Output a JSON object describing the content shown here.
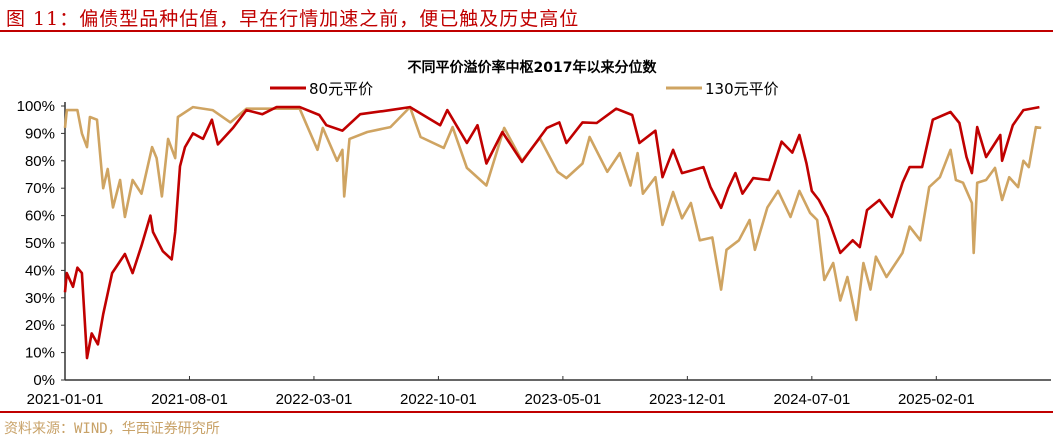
{
  "figure_title": "图 11：偏债型品种估值，早在行情加速之前，便已触及历史高位",
  "source": "资料来源：WIND，华西证券研究所",
  "colors": {
    "accent": "#c00000",
    "series_80": "#c00000",
    "series_130": "#cfa462",
    "source_text": "#c8a268"
  },
  "chart_data": {
    "type": "line",
    "title": "不同平价溢价率中枢2017年以来分位数",
    "x_unit": "months since 2021-01-01",
    "xlim": [
      0,
      55
    ],
    "ylim": [
      0,
      100
    ],
    "x_ticks": [
      0,
      7,
      14,
      21,
      28,
      35,
      42,
      49
    ],
    "x_tick_labels": [
      "2021-01-01",
      "2021-08-01",
      "2022-03-01",
      "2022-10-01",
      "2023-05-01",
      "2023-12-01",
      "2024-07-01",
      "2025-02-01"
    ],
    "y_ticks": [
      0,
      10,
      20,
      30,
      40,
      50,
      60,
      70,
      80,
      90,
      100
    ],
    "y_tick_labels": [
      "0%",
      "10%",
      "20%",
      "30%",
      "40%",
      "50%",
      "60%",
      "70%",
      "80%",
      "90%",
      "100%"
    ],
    "legend_position": "top",
    "series": [
      {
        "name": "80元平价",
        "color": "#c00000",
        "x": [
          0,
          0.1,
          0.45,
          0.7,
          0.95,
          1.24,
          1.5,
          1.85,
          2.15,
          2.65,
          3.37,
          3.8,
          4.3,
          4.8,
          4.95,
          5.5,
          6.0,
          6.2,
          6.47,
          6.75,
          7.2,
          7.76,
          8.26,
          8.6,
          9.45,
          10.2,
          11.1,
          11.9,
          13.2,
          14.3,
          14.7,
          15.6,
          16.6,
          18.3,
          19.4,
          21.1,
          21.5,
          22.6,
          23.2,
          23.7,
          24.6,
          25.7,
          26.3,
          27.1,
          27.8,
          28.2,
          29.1,
          29.9,
          31,
          31.9,
          32.3,
          33.2,
          33.6,
          34.2,
          34.7,
          35.9,
          36.3,
          36.9,
          37.3,
          37.7,
          38.1,
          38.7,
          39.6,
          40.3,
          40.9,
          41.3,
          41.7,
          42,
          42.4,
          42.9,
          43.6,
          44.3,
          44.7,
          45.1,
          45.8,
          46.5,
          47.1,
          47.5,
          48.2,
          48.8,
          49.8,
          50.3,
          50.7,
          51,
          51.3,
          51.8,
          52.6,
          52.7,
          53.3,
          53.9,
          54.8
        ],
        "values": [
          32,
          39,
          34,
          41,
          39,
          8,
          17,
          13,
          24,
          39,
          46,
          39,
          49,
          60,
          54,
          47,
          44,
          54,
          78,
          85,
          90,
          88,
          95,
          86,
          92,
          98.5,
          97,
          99.6,
          99.6,
          96.7,
          93,
          91,
          97,
          98.5,
          99.6,
          93,
          98.5,
          86.5,
          93,
          79,
          90.5,
          79.6,
          85,
          92,
          94,
          86.5,
          94,
          93.8,
          99,
          96.7,
          86.5,
          91,
          74,
          84,
          75.5,
          77.7,
          70.4,
          62.8,
          70,
          75.5,
          68,
          73.7,
          73,
          87,
          83,
          89.4,
          79,
          69,
          65.7,
          59.5,
          46.4,
          51,
          48.5,
          62,
          65.7,
          59.5,
          72,
          77.7,
          77.7,
          95,
          97.8,
          93.8,
          81.4,
          75.5,
          92.3,
          81.4,
          89.4,
          80,
          93,
          98.5,
          99.6
        ]
      },
      {
        "name": "130元平价",
        "color": "#cfa462",
        "x": [
          0,
          0.1,
          0.7,
          0.95,
          1.24,
          1.4,
          1.8,
          2.15,
          2.4,
          2.7,
          3.1,
          3.37,
          3.8,
          4.3,
          4.9,
          5.15,
          5.45,
          5.8,
          6.2,
          6.35,
          7.2,
          8.3,
          9.3,
          10.2,
          13.2,
          13.6,
          14.2,
          14.5,
          15.3,
          15.6,
          15.7,
          16,
          17,
          18.3,
          19.4,
          20,
          21.3,
          21.8,
          22.6,
          23.7,
          24.7,
          25.7,
          26.7,
          27.7,
          28.2,
          29.1,
          29.5,
          30.5,
          31.2,
          31.8,
          32.2,
          32.5,
          33.2,
          33.6,
          34.2,
          34.7,
          35.2,
          35.7,
          36.4,
          36.9,
          37.2,
          37.9,
          38.5,
          38.8,
          39.5,
          40.1,
          40.8,
          41.3,
          41.9,
          42.3,
          42.7,
          43.2,
          43.6,
          44,
          44.5,
          44.9,
          45.3,
          45.6,
          46.2,
          47.1,
          47.5,
          48.1,
          48.6,
          49.2,
          49.8,
          50.1,
          50.5,
          51,
          51.1,
          51.3,
          51.8,
          52.3,
          52.7,
          53.1,
          53.6,
          53.9,
          54.2,
          54.6,
          54.9
        ],
        "values": [
          92,
          98.5,
          98.5,
          90,
          85,
          96,
          95,
          70,
          77,
          63,
          73,
          59.5,
          73,
          68,
          85,
          81,
          67,
          88,
          81,
          96,
          99.6,
          98.5,
          94,
          99,
          99,
          93,
          84,
          92,
          80,
          84,
          67,
          88,
          90.5,
          92.3,
          99.6,
          88.7,
          84.7,
          92.3,
          77.4,
          71,
          92,
          80,
          88.3,
          76,
          73.7,
          79,
          88.7,
          76,
          82.8,
          71,
          82.8,
          68,
          74,
          56.6,
          68.6,
          59,
          64.6,
          51,
          52,
          33,
          47.5,
          51,
          58.4,
          47.5,
          63,
          69,
          59.5,
          69,
          61,
          58.4,
          36.5,
          42.7,
          29,
          37.6,
          21.9,
          42.7,
          33,
          45,
          37.6,
          46.4,
          56,
          51,
          70.4,
          74,
          84,
          73,
          72,
          64.6,
          46.4,
          72,
          73,
          77.4,
          65.7,
          74,
          70.4,
          80,
          77.7,
          92.3,
          92
        ]
      }
    ]
  }
}
